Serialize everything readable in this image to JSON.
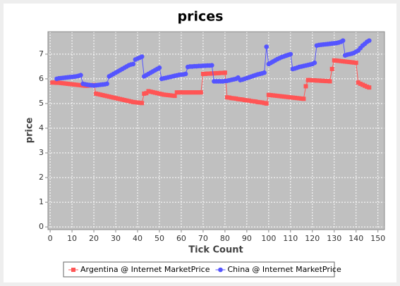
{
  "chart_data": {
    "type": "line",
    "title": "prices",
    "x_label": "Tick Count",
    "y_label": "price",
    "x": [
      1,
      2,
      3,
      4,
      5,
      6,
      7,
      8,
      9,
      10,
      11,
      12,
      13,
      14,
      15,
      16,
      17,
      18,
      19,
      20,
      21,
      22,
      23,
      24,
      25,
      26,
      27,
      28,
      29,
      30,
      31,
      32,
      33,
      34,
      35,
      36,
      37,
      38,
      39,
      40,
      41,
      42,
      43,
      44,
      45,
      46,
      47,
      48,
      49,
      50,
      51,
      52,
      53,
      54,
      55,
      56,
      57,
      58,
      59,
      60,
      61,
      62,
      63,
      64,
      65,
      66,
      67,
      68,
      69,
      70,
      71,
      72,
      73,
      74,
      75,
      76,
      77,
      78,
      79,
      80,
      81,
      82,
      83,
      84,
      85,
      86,
      87,
      88,
      89,
      90,
      91,
      92,
      93,
      94,
      95,
      96,
      97,
      98,
      99,
      100,
      101,
      102,
      103,
      104,
      105,
      106,
      107,
      108,
      109,
      110,
      111,
      112,
      113,
      114,
      115,
      116,
      117,
      118,
      119,
      120,
      121,
      122,
      123,
      124,
      125,
      126,
      127,
      128,
      129,
      130,
      131,
      132,
      133,
      134,
      135,
      136,
      137,
      138,
      139,
      140,
      141,
      142,
      143,
      144,
      145,
      146
    ],
    "series": [
      {
        "name": "Argentina @ Internet MarketPrice",
        "color": "#ff5555",
        "marker": "square",
        "values": [
          5.85,
          5.85,
          5.84,
          5.84,
          5.83,
          5.82,
          5.81,
          5.8,
          5.79,
          5.78,
          5.77,
          5.76,
          5.75,
          5.74,
          5.73,
          5.72,
          5.72,
          5.73,
          5.74,
          5.75,
          5.4,
          5.38,
          5.36,
          5.34,
          5.32,
          5.3,
          5.28,
          5.26,
          5.24,
          5.22,
          5.2,
          5.18,
          5.16,
          5.14,
          5.12,
          5.1,
          5.08,
          5.06,
          5.05,
          5.04,
          5.03,
          5.02,
          5.4,
          5.42,
          5.5,
          5.48,
          5.46,
          5.44,
          5.42,
          5.4,
          5.38,
          5.36,
          5.35,
          5.34,
          5.33,
          5.32,
          5.31,
          5.45,
          5.45,
          5.45,
          5.45,
          5.45,
          5.45,
          5.45,
          5.45,
          5.45,
          5.45,
          5.45,
          5.45,
          6.2,
          6.2,
          6.21,
          6.21,
          6.22,
          6.22,
          6.23,
          6.23,
          6.24,
          6.24,
          6.25,
          5.25,
          5.24,
          5.22,
          5.21,
          5.2,
          5.18,
          5.17,
          5.16,
          5.14,
          5.13,
          5.12,
          5.1,
          5.09,
          5.08,
          5.06,
          5.05,
          5.04,
          5.02,
          5.0,
          5.35,
          5.34,
          5.33,
          5.32,
          5.31,
          5.3,
          5.29,
          5.28,
          5.27,
          5.26,
          5.25,
          5.24,
          5.23,
          5.22,
          5.21,
          5.2,
          5.19,
          5.7,
          5.95,
          5.95,
          5.94,
          5.94,
          5.93,
          5.93,
          5.92,
          5.92,
          5.91,
          5.91,
          5.9,
          6.4,
          6.75,
          6.74,
          6.73,
          6.72,
          6.71,
          6.7,
          6.69,
          6.68,
          6.67,
          6.66,
          6.65,
          5.85,
          5.8,
          5.76,
          5.72,
          5.68,
          5.65
        ]
      },
      {
        "name": "China @ Internet MarketPrice",
        "color": "#5555ff",
        "marker": "circle",
        "values": [
          null,
          null,
          6.0,
          6.02,
          6.03,
          6.04,
          6.05,
          6.06,
          6.07,
          6.08,
          6.09,
          6.1,
          6.12,
          6.15,
          5.8,
          5.78,
          5.76,
          5.75,
          5.74,
          5.73,
          5.74,
          5.75,
          5.76,
          5.77,
          5.78,
          5.8,
          6.1,
          6.15,
          6.2,
          6.25,
          6.3,
          6.35,
          6.4,
          6.45,
          6.5,
          6.55,
          6.58,
          6.6,
          6.78,
          6.82,
          6.86,
          6.9,
          6.1,
          6.15,
          6.2,
          6.25,
          6.3,
          6.35,
          6.4,
          6.45,
          6.0,
          6.02,
          6.04,
          6.06,
          6.08,
          6.1,
          6.12,
          6.14,
          6.16,
          6.17,
          6.18,
          6.2,
          6.48,
          6.5,
          6.5,
          6.51,
          6.51,
          6.52,
          6.52,
          6.53,
          6.53,
          6.54,
          6.54,
          6.55,
          5.9,
          5.9,
          5.9,
          5.9,
          5.9,
          5.91,
          5.92,
          5.94,
          5.96,
          5.98,
          6.0,
          6.05,
          5.95,
          5.97,
          6.0,
          6.03,
          6.06,
          6.09,
          6.12,
          6.15,
          6.18,
          6.2,
          6.22,
          6.25,
          7.3,
          6.6,
          6.65,
          6.7,
          6.75,
          6.8,
          6.84,
          6.88,
          6.91,
          6.94,
          6.97,
          7.0,
          6.4,
          6.42,
          6.45,
          6.48,
          6.5,
          6.52,
          6.54,
          6.56,
          6.58,
          6.6,
          6.65,
          7.35,
          7.37,
          7.38,
          7.39,
          7.4,
          7.41,
          7.42,
          7.43,
          7.44,
          7.45,
          7.47,
          7.5,
          7.55,
          6.95,
          6.98,
          7.0,
          7.02,
          7.05,
          7.1,
          7.15,
          7.25,
          7.35,
          7.42,
          7.5,
          7.55
        ]
      }
    ],
    "xlim": [
      -1,
      153
    ],
    "xticks": [
      0,
      10,
      20,
      30,
      40,
      50,
      60,
      70,
      80,
      90,
      100,
      110,
      120,
      130,
      140,
      150
    ],
    "ylim": [
      -0.11,
      7.91
    ],
    "yticks": [
      0,
      1,
      2,
      3,
      4,
      5,
      6,
      7
    ],
    "grid": true,
    "legend": "bottom"
  }
}
